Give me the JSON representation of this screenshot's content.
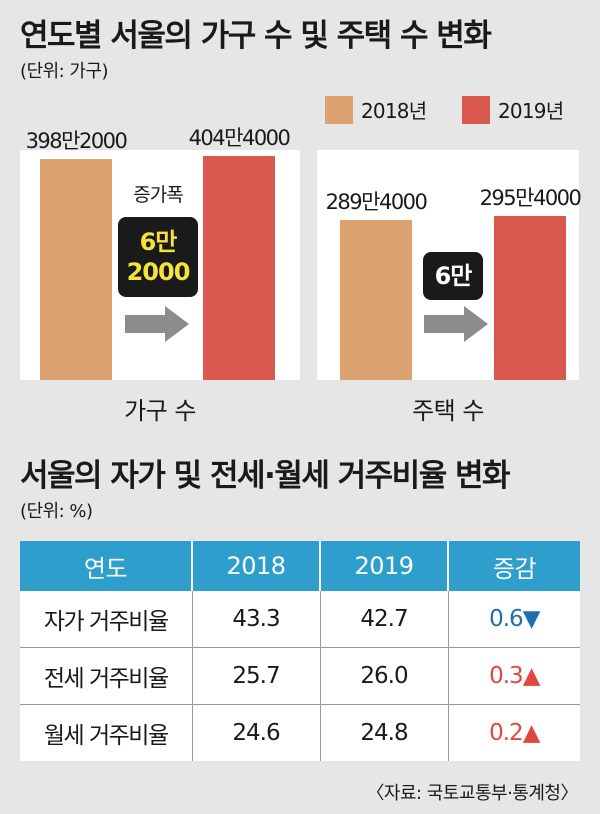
{
  "chart_data": [
    {
      "type": "bar",
      "title": "연도별 서울의 가구 수 및 주택 수 변화",
      "unit": "(단위: 가구)",
      "legend": {
        "position": "top-right",
        "entries": [
          "2018년",
          "2019년"
        ]
      },
      "categories": [
        "가구 수",
        "주택 수"
      ],
      "series": [
        {
          "name": "2018년",
          "color": "#dca371",
          "values": [
            3982000,
            2894000
          ],
          "labels": [
            "398만2000",
            "289만4000"
          ]
        },
        {
          "name": "2019년",
          "color": "#d9594f",
          "values": [
            4044000,
            2954000
          ],
          "labels": [
            "404만4000",
            "295만4000"
          ]
        }
      ],
      "annotations": [
        {
          "category": "가구 수",
          "caption": "증가폭",
          "text_lines": [
            "6만",
            "2000"
          ],
          "color": "#f5e33c"
        },
        {
          "category": "주택 수",
          "caption": "",
          "text_lines": [
            "6만"
          ],
          "color": "#ffffff"
        }
      ]
    },
    {
      "type": "table",
      "title": "서울의 자가 및 전세·월세 거주비율 변화",
      "unit": "(단위: %)",
      "columns": [
        "연도",
        "2018",
        "2019",
        "증감"
      ],
      "rows": [
        {
          "label": "자가 거주비율",
          "v2018": "43.3",
          "v2019": "42.7",
          "change": "0.6",
          "dir": "▼",
          "color": "#1f6fae"
        },
        {
          "label": "전세 거주비율",
          "v2018": "25.7",
          "v2019": "26.0",
          "change": "0.3",
          "dir": "▲",
          "color": "#e0473e"
        },
        {
          "label": "월세 거주비율",
          "v2018": "24.6",
          "v2019": "24.8",
          "change": "0.2",
          "dir": "▲",
          "color": "#e0473e"
        }
      ]
    }
  ],
  "source": "〈자료: 국토교통부·통계청〉",
  "colors": {
    "background": "#e6e6e6",
    "panel": "#ffffff",
    "header": "#2e9fcd",
    "arrow": "#8c8c8c",
    "badge": "#1a1a1a"
  }
}
